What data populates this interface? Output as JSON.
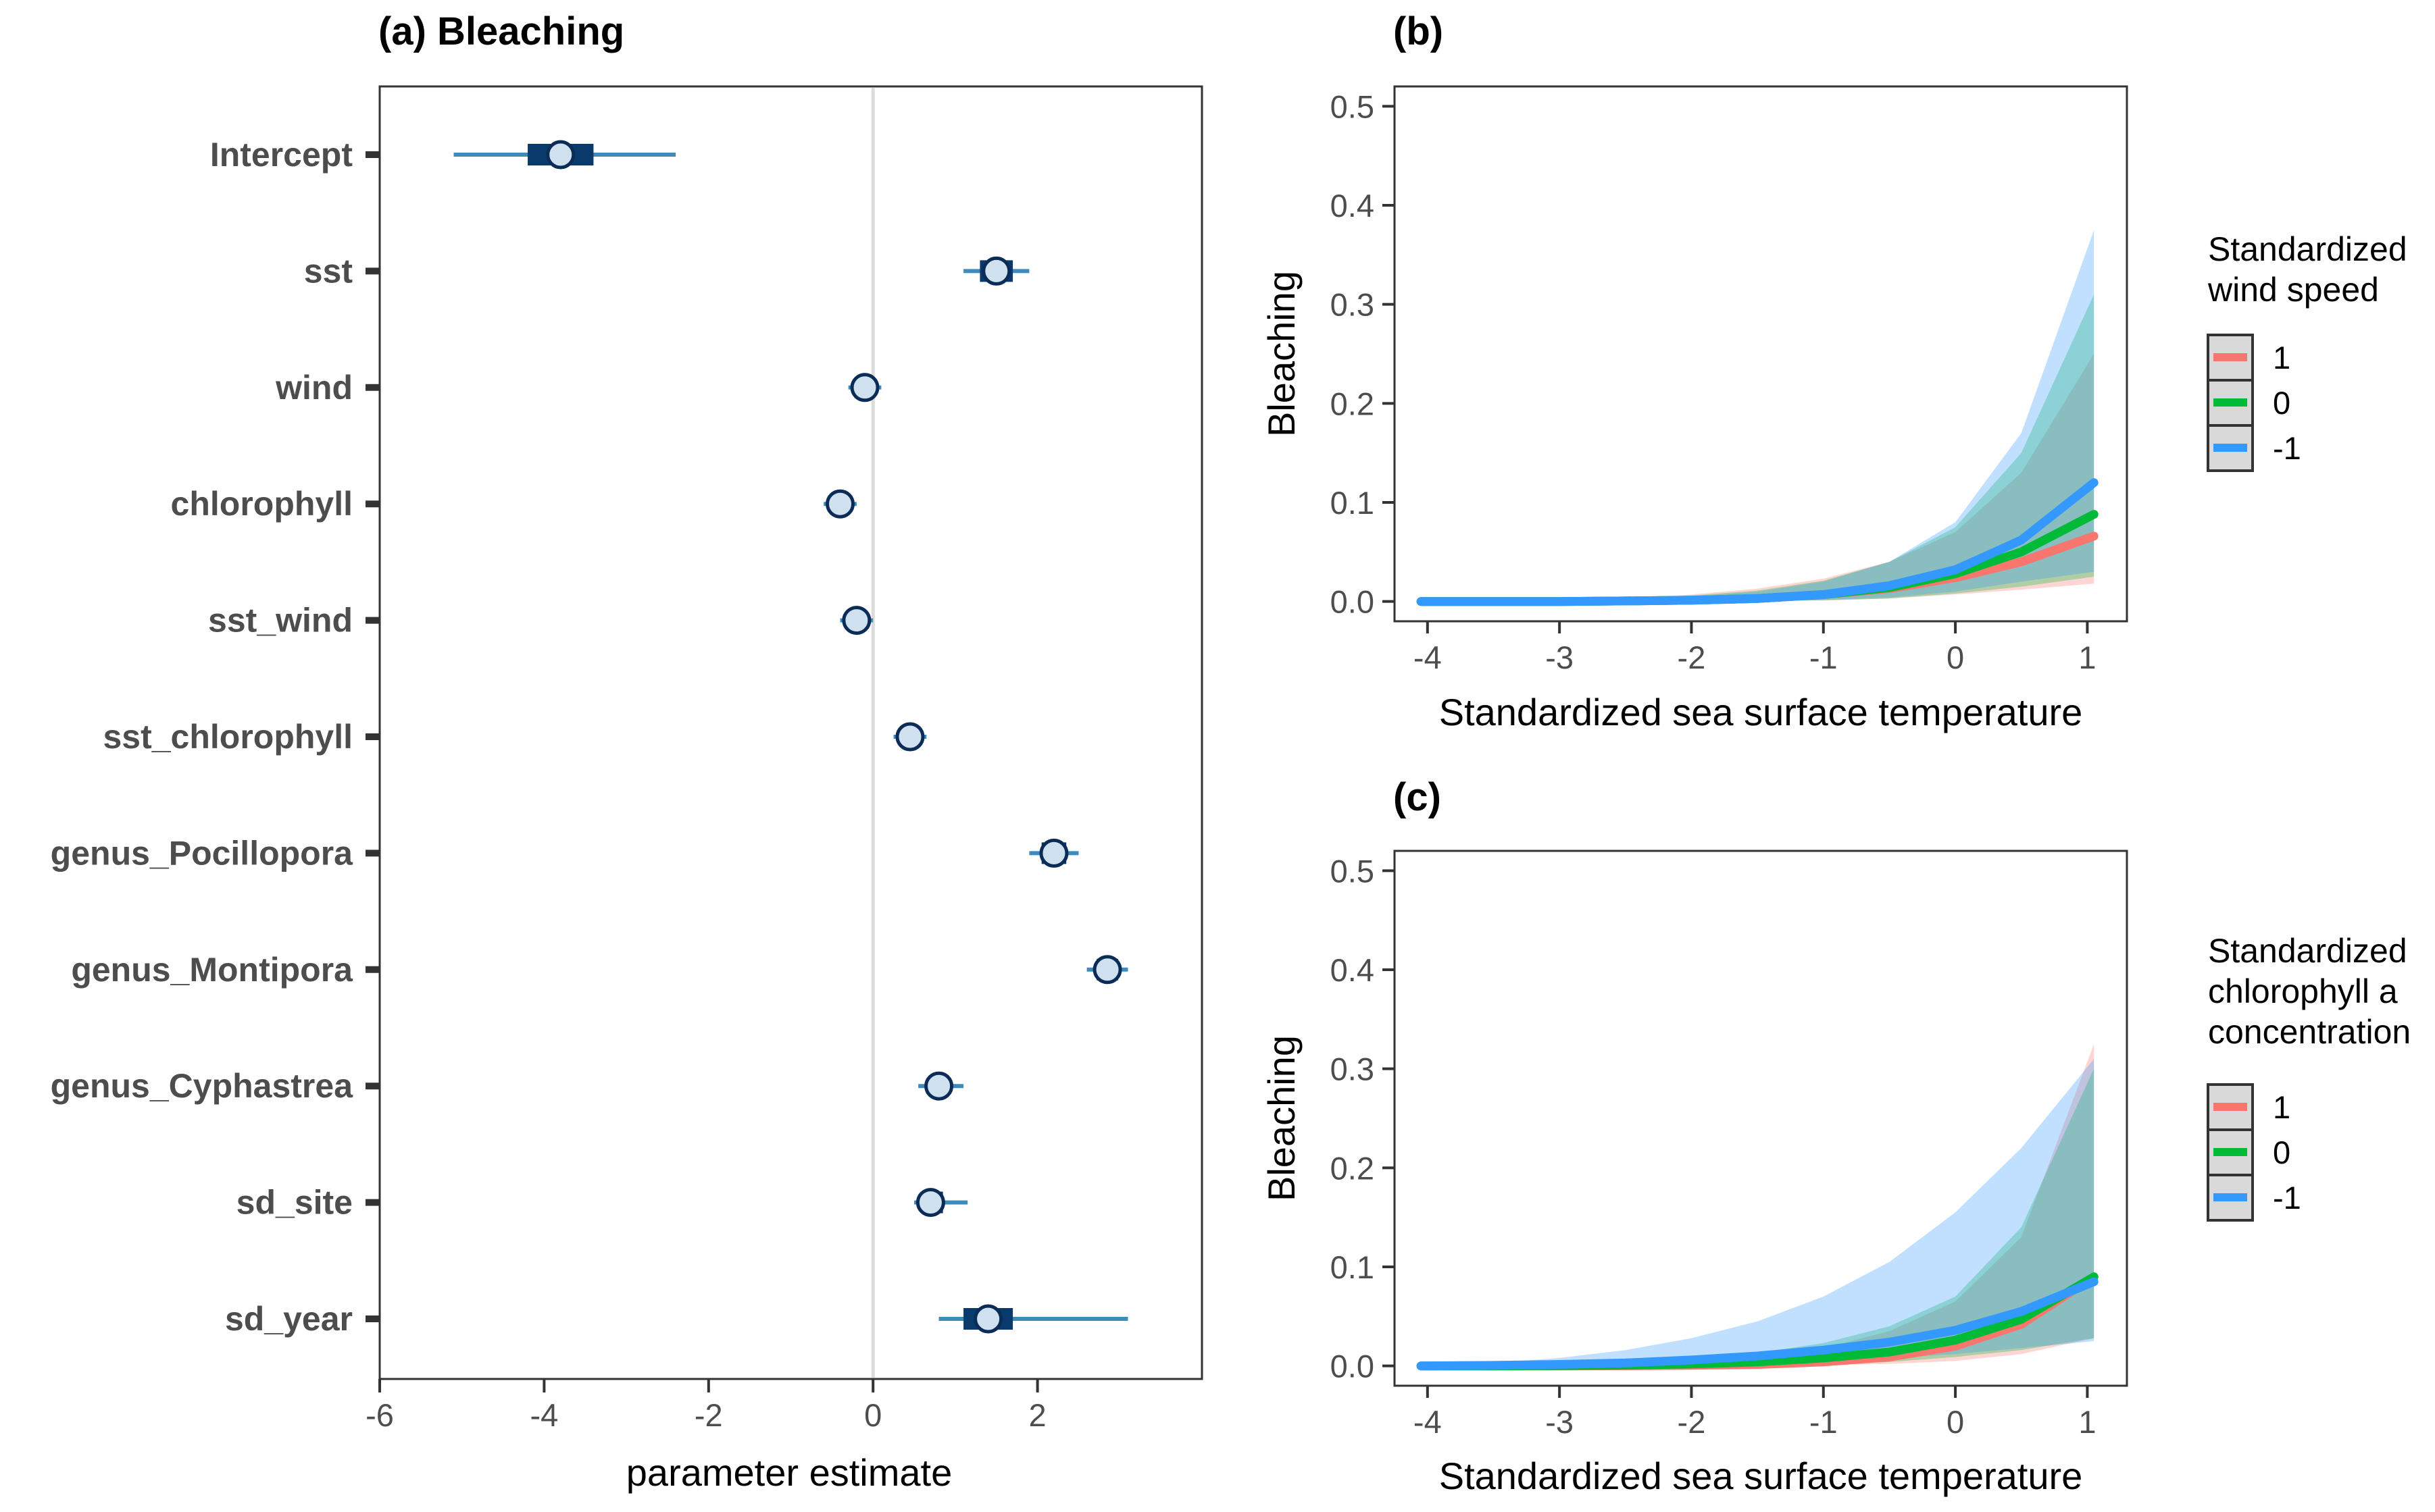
{
  "chart_data": [
    {
      "panel": "a",
      "type": "interval-dotplot",
      "title": "(a) Bleaching",
      "xlabel": "parameter estimate",
      "ylabel": "",
      "xlim": [
        -6,
        4
      ],
      "xticks": [
        "-6",
        "-4",
        "-2",
        "0",
        "2"
      ],
      "reference_line": 0,
      "rows": [
        {
          "label": "Intercept",
          "mean": -3.8,
          "inner": [
            -4.2,
            -3.4
          ],
          "outer": [
            -5.1,
            -2.4
          ]
        },
        {
          "label": "sst",
          "mean": 1.5,
          "inner": [
            1.3,
            1.7
          ],
          "outer": [
            1.1,
            1.9
          ]
        },
        {
          "label": "wind",
          "mean": -0.1,
          "inner": [
            -0.18,
            -0.02
          ],
          "outer": [
            -0.3,
            0.1
          ]
        },
        {
          "label": "chlorophyll",
          "mean": -0.4,
          "inner": [
            -0.5,
            -0.3
          ],
          "outer": [
            -0.6,
            -0.2
          ]
        },
        {
          "label": "sst_wind",
          "mean": -0.2,
          "inner": [
            -0.3,
            -0.1
          ],
          "outer": [
            -0.4,
            0.0
          ]
        },
        {
          "label": "sst_chlorophyll",
          "mean": 0.45,
          "inner": [
            0.35,
            0.55
          ],
          "outer": [
            0.25,
            0.65
          ]
        },
        {
          "label": "genus_Pocillopora",
          "mean": 2.2,
          "inner": [
            2.05,
            2.35
          ],
          "outer": [
            1.9,
            2.5
          ]
        },
        {
          "label": "genus_Montipora",
          "mean": 2.85,
          "inner": [
            2.72,
            2.98
          ],
          "outer": [
            2.6,
            3.1
          ]
        },
        {
          "label": "genus_Cyphastrea",
          "mean": 0.8,
          "inner": [
            0.68,
            0.92
          ],
          "outer": [
            0.55,
            1.1
          ]
        },
        {
          "label": "sd_site",
          "mean": 0.7,
          "inner": [
            0.6,
            0.85
          ],
          "outer": [
            0.5,
            1.15
          ]
        },
        {
          "label": "sd_year",
          "mean": 1.4,
          "inner": [
            1.1,
            1.7
          ],
          "outer": [
            0.8,
            3.1
          ]
        }
      ]
    },
    {
      "panel": "b",
      "type": "line",
      "title": "(b)",
      "xlabel": "Standardized sea surface temperature",
      "ylabel": "Bleaching",
      "xlim": [
        -4.25,
        1.3
      ],
      "ylim": [
        -0.02,
        0.52
      ],
      "xticks": [
        "-4",
        "-3",
        "-2",
        "-1",
        "0",
        "1"
      ],
      "yticks": [
        "0.0",
        "0.1",
        "0.2",
        "0.3",
        "0.4",
        "0.5"
      ],
      "x": [
        -4.05,
        -3.5,
        -3.0,
        -2.5,
        -2.0,
        -1.5,
        -1.0,
        -0.5,
        0.0,
        0.5,
        1.05
      ],
      "legend_title": "Standardized\nwind speed",
      "legend_position": "right",
      "series": [
        {
          "name": "1",
          "color": "#F8766D",
          "values": [
            0.0,
            0.0,
            0.0,
            0.0005,
            0.0013,
            0.003,
            0.007,
            0.013,
            0.024,
            0.04,
            0.066
          ],
          "lower": [
            0.0,
            0.0,
            0.0,
            0.0,
            0.0002,
            0.0005,
            0.001,
            0.003,
            0.007,
            0.012,
            0.018
          ],
          "upper": [
            0.0,
            0.0,
            0.001,
            0.003,
            0.007,
            0.013,
            0.023,
            0.04,
            0.07,
            0.13,
            0.25
          ]
        },
        {
          "name": "0",
          "color": "#00BA38",
          "values": [
            0.0,
            0.0,
            0.0,
            0.0005,
            0.0013,
            0.003,
            0.007,
            0.014,
            0.028,
            0.05,
            0.088
          ],
          "lower": [
            0.0,
            0.0,
            0.0,
            0.0,
            0.0002,
            0.0005,
            0.0012,
            0.003,
            0.008,
            0.015,
            0.025
          ],
          "upper": [
            0.0,
            0.0,
            0.001,
            0.002,
            0.006,
            0.011,
            0.021,
            0.04,
            0.075,
            0.15,
            0.31
          ]
        },
        {
          "name": "-1",
          "color": "#3399FF",
          "values": [
            0.0,
            0.0,
            0.0,
            0.0005,
            0.0013,
            0.003,
            0.007,
            0.016,
            0.032,
            0.062,
            0.12
          ],
          "lower": [
            0.0,
            0.0,
            0.0,
            0.0,
            0.0002,
            0.0006,
            0.0015,
            0.004,
            0.01,
            0.02,
            0.03
          ],
          "upper": [
            0.0,
            0.0,
            0.001,
            0.002,
            0.005,
            0.01,
            0.02,
            0.04,
            0.08,
            0.17,
            0.375
          ]
        }
      ]
    },
    {
      "panel": "c",
      "type": "line",
      "title": "(c)",
      "xlabel": "Standardized sea surface temperature",
      "ylabel": "Bleaching",
      "xlim": [
        -4.25,
        1.3
      ],
      "ylim": [
        -0.02,
        0.52
      ],
      "xticks": [
        "-4",
        "-3",
        "-2",
        "-1",
        "0",
        "1"
      ],
      "yticks": [
        "0.0",
        "0.1",
        "0.2",
        "0.3",
        "0.4",
        "0.5"
      ],
      "x": [
        -4.05,
        -3.5,
        -3.0,
        -2.5,
        -2.0,
        -1.5,
        -1.0,
        -0.5,
        0.0,
        0.5,
        1.05
      ],
      "legend_title": "Standardized\nchlorophyll a\nconcentration",
      "legend_position": "right",
      "series": [
        {
          "name": "1",
          "color": "#F8766D",
          "values": [
            0.0,
            0.0,
            0.0,
            0.0002,
            0.0006,
            0.0015,
            0.004,
            0.009,
            0.02,
            0.042,
            0.09
          ],
          "lower": [
            0.0,
            0.0,
            0.0,
            0.0,
            0.0001,
            0.0003,
            0.001,
            0.002,
            0.005,
            0.012,
            0.028
          ],
          "upper": [
            0.0,
            0.0,
            0.0,
            0.001,
            0.003,
            0.008,
            0.018,
            0.035,
            0.065,
            0.13,
            0.325
          ]
        },
        {
          "name": "0",
          "color": "#00BA38",
          "values": [
            0.0,
            0.0,
            0.0003,
            0.0008,
            0.002,
            0.004,
            0.008,
            0.014,
            0.026,
            0.047,
            0.09
          ],
          "lower": [
            0.0,
            0.0,
            0.0,
            0.0001,
            0.0003,
            0.0008,
            0.0018,
            0.004,
            0.009,
            0.016,
            0.028
          ],
          "upper": [
            0.0,
            0.0,
            0.001,
            0.003,
            0.007,
            0.013,
            0.023,
            0.04,
            0.07,
            0.14,
            0.3
          ]
        },
        {
          "name": "-1",
          "color": "#3399FF",
          "values": [
            0.0,
            0.0005,
            0.0015,
            0.003,
            0.006,
            0.01,
            0.016,
            0.024,
            0.036,
            0.055,
            0.085
          ],
          "lower": [
            0.0,
            0.0001,
            0.0003,
            0.0008,
            0.0015,
            0.003,
            0.005,
            0.008,
            0.012,
            0.018,
            0.025
          ],
          "upper": [
            0.001,
            0.003,
            0.008,
            0.016,
            0.028,
            0.045,
            0.07,
            0.105,
            0.155,
            0.22,
            0.31
          ]
        }
      ]
    }
  ]
}
